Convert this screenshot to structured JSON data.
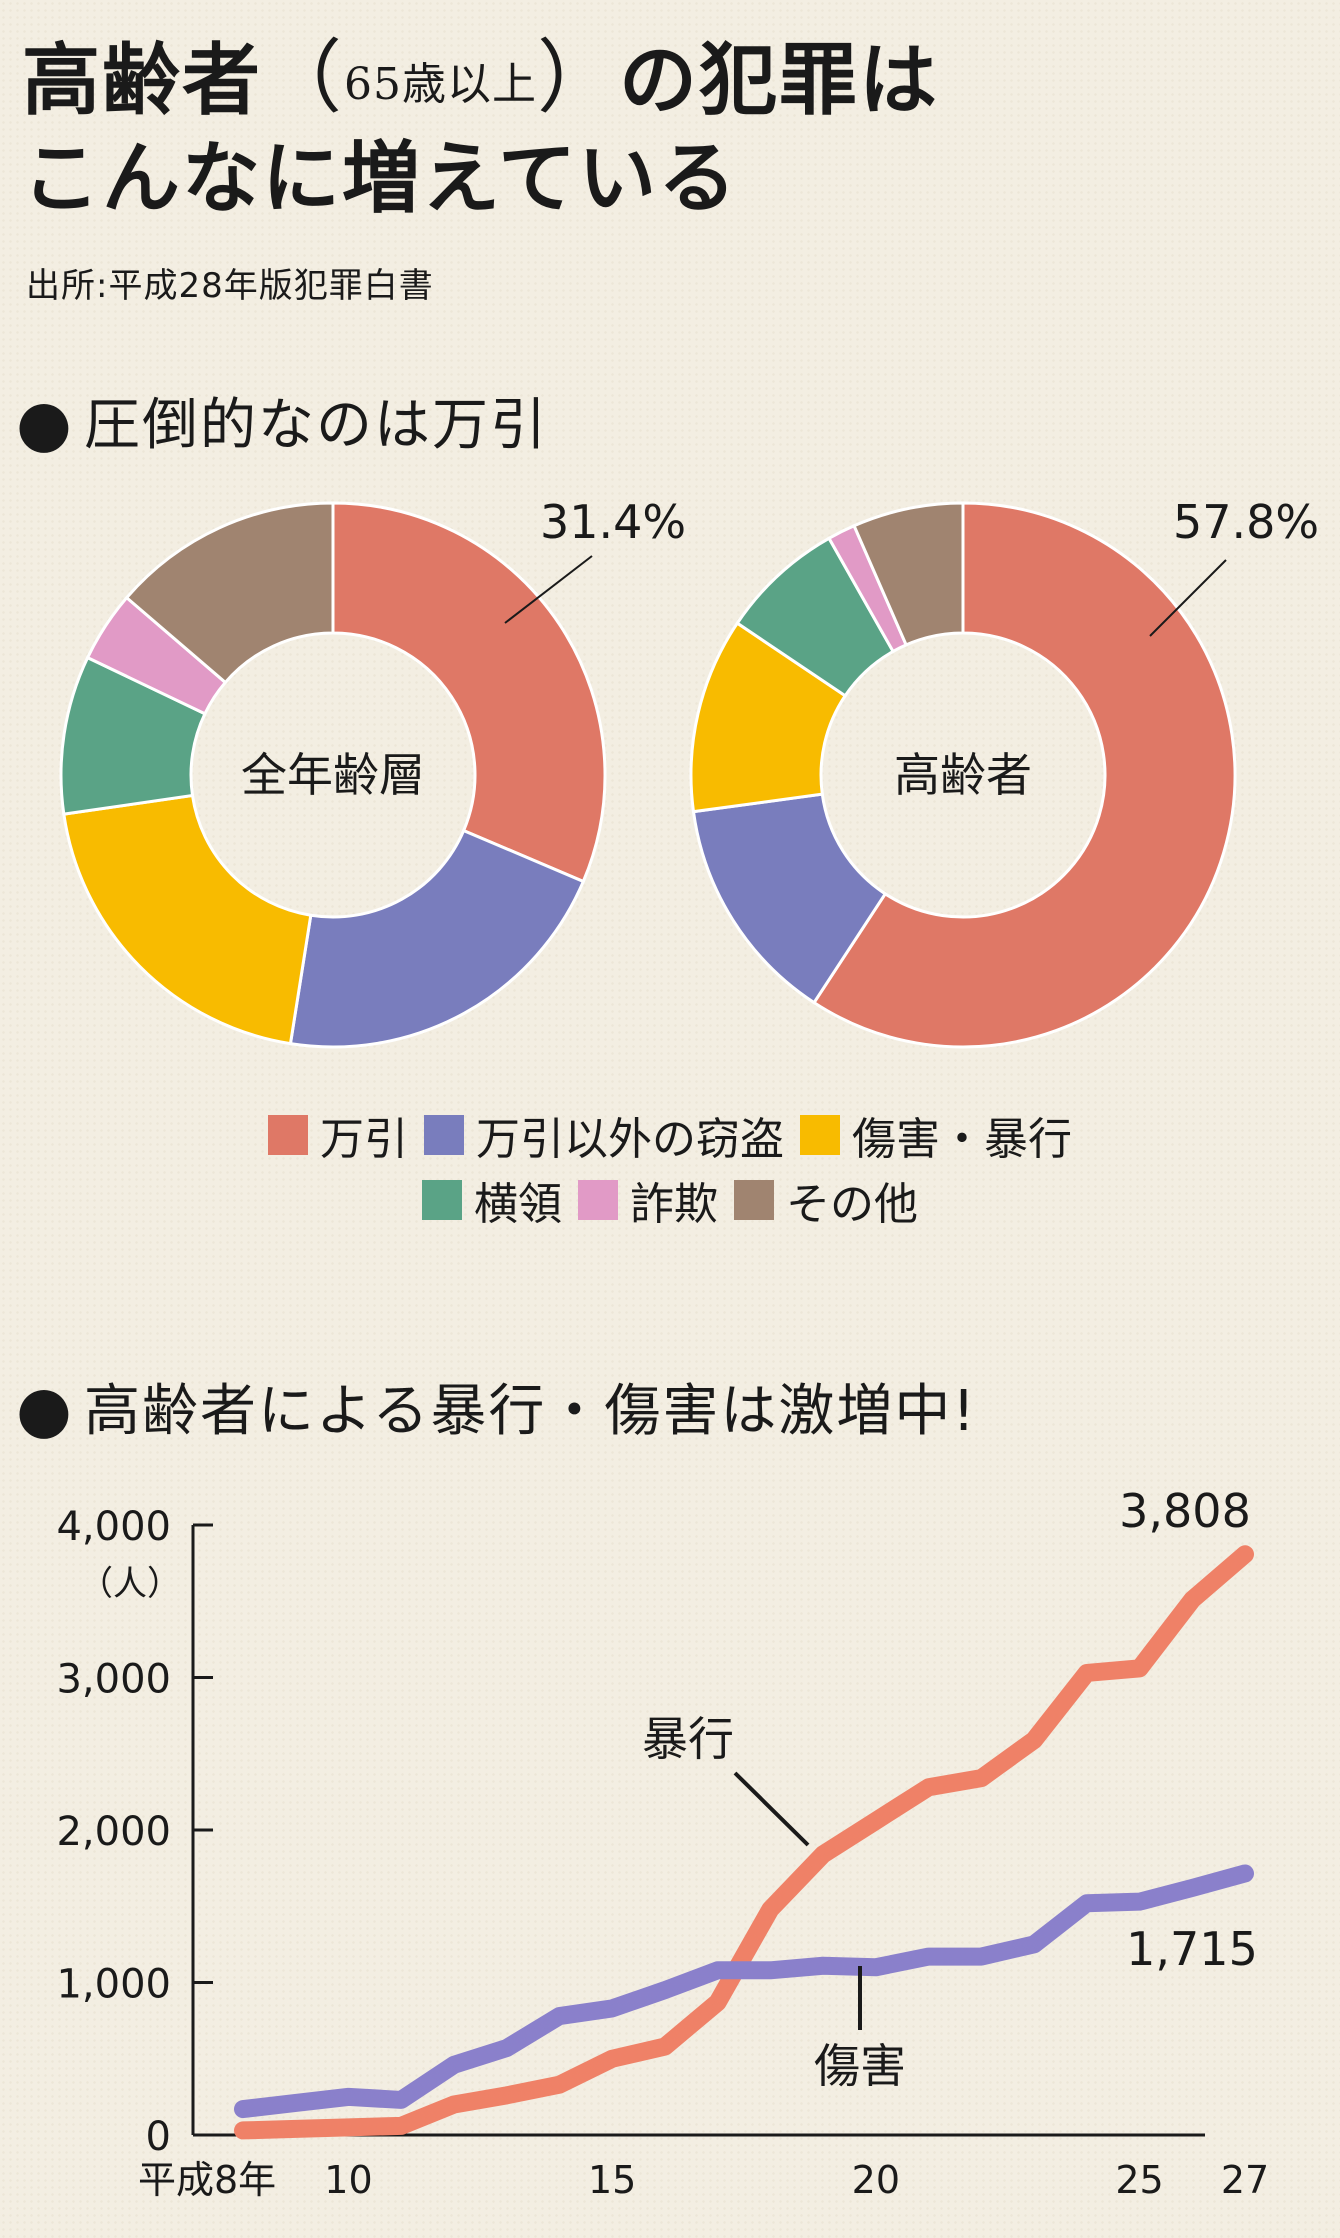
{
  "title": {
    "line1_main": "高齢者",
    "line1_open": "（",
    "line1_sub": "65歳以上",
    "line1_close": "）",
    "line1_rest": "の犯罪は",
    "line2": "こんなに増えている"
  },
  "source": "出所:平成28年版犯罪白書",
  "section1": {
    "bullet": "●",
    "heading": "圧倒的なのは万引"
  },
  "section2": {
    "bullet": "●",
    "heading": "高齢者による暴行・傷害は激増中!"
  },
  "colors": {
    "shoplifting": "#df7866",
    "other_theft": "#797dbd",
    "assault_injury": "#f8bb00",
    "embezzlement": "#5aa386",
    "fraud": "#e19ac6",
    "other": "#a08470",
    "line_assault": "#ef8167",
    "line_injury": "#8a80cb",
    "background": "#f3eee2"
  },
  "legend": [
    {
      "key": "shoplifting",
      "label": "万引"
    },
    {
      "key": "other_theft",
      "label": "万引以外の窃盗"
    },
    {
      "key": "assault_injury",
      "label": "傷害・暴行"
    },
    {
      "key": "embezzlement",
      "label": "横領"
    },
    {
      "key": "fraud",
      "label": "詐欺"
    },
    {
      "key": "other",
      "label": "その他"
    }
  ],
  "chart_data": [
    {
      "type": "pie",
      "variant": "donut",
      "center_label": "全年齢層",
      "categories": [
        "万引",
        "万引以外の窃盗",
        "傷害・暴行",
        "横領",
        "詐欺",
        "その他"
      ],
      "values": [
        31.4,
        21.1,
        20.2,
        9.4,
        4.2,
        13.7
      ],
      "annotation": "31.4%"
    },
    {
      "type": "pie",
      "variant": "donut",
      "center_label": "高齢者",
      "categories": [
        "万引",
        "万引以外の窃盗",
        "傷害・暴行",
        "横領",
        "詐欺",
        "その他"
      ],
      "values": [
        57.8,
        13.3,
        11.3,
        7.2,
        1.6,
        6.4
      ],
      "annotation": "57.8%"
    },
    {
      "type": "line",
      "ylabel": "（人）",
      "ylim": [
        0,
        4000
      ],
      "yticks": [
        0,
        1000,
        2000,
        3000,
        4000
      ],
      "ytick_labels": [
        "0",
        "1,000",
        "2,000",
        "3,000",
        "4,000"
      ],
      "xlim": [
        8,
        27
      ],
      "xticks": [
        8,
        10,
        15,
        20,
        25,
        27
      ],
      "xtick_labels": [
        "平成8年",
        "10",
        "15",
        "20",
        "25",
        "27"
      ],
      "x": [
        8,
        9,
        10,
        11,
        12,
        13,
        14,
        15,
        16,
        17,
        18,
        19,
        20,
        21,
        22,
        23,
        24,
        25,
        26,
        27
      ],
      "series": [
        {
          "name": "暴行",
          "key": "line_assault",
          "values": [
            30,
            40,
            50,
            60,
            200,
            260,
            330,
            500,
            580,
            870,
            1480,
            1840,
            2060,
            2280,
            2340,
            2590,
            3030,
            3060,
            3510,
            3808
          ],
          "end_label": "3,808"
        },
        {
          "name": "傷害",
          "key": "line_injury",
          "values": [
            170,
            210,
            250,
            230,
            460,
            570,
            780,
            830,
            950,
            1080,
            1080,
            1110,
            1100,
            1170,
            1170,
            1250,
            1520,
            1530,
            1620,
            1715
          ],
          "end_label": "1,715"
        }
      ]
    }
  ]
}
